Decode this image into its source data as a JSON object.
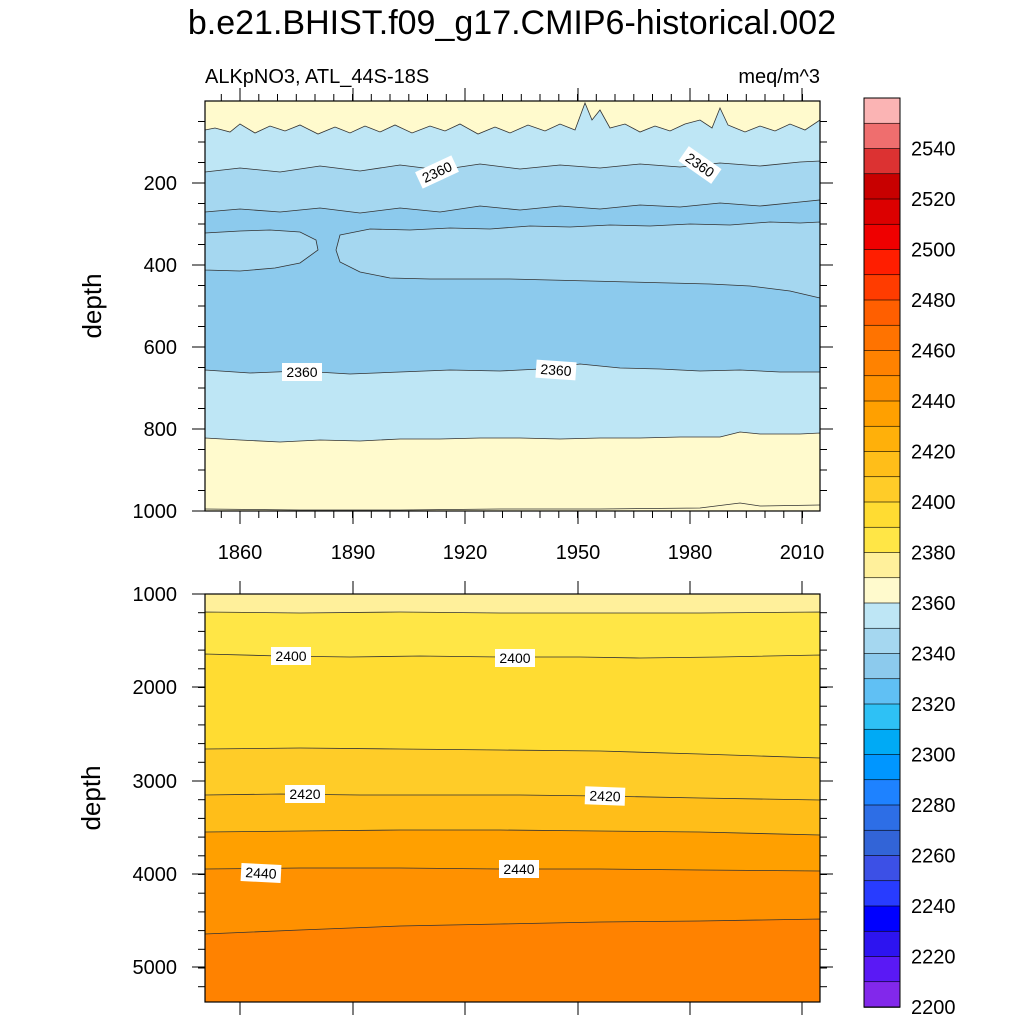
{
  "title": "b.e21.BHIST.f09_g17.CMIP6-historical.002",
  "top_panel": {
    "left_label": "ALKpNO3, ATL_44S-18S",
    "right_label": "meq/m^3",
    "ylabel": "depth",
    "yticks": [
      "200",
      "400",
      "600",
      "800",
      "1000"
    ],
    "xticks": [
      "1860",
      "1890",
      "1920",
      "1950",
      "1980",
      "2010"
    ],
    "contour_labels": [
      "2360",
      "2360",
      "2360",
      "2360"
    ]
  },
  "bottom_panel": {
    "ylabel": "depth",
    "yticks": [
      "1000",
      "2000",
      "3000",
      "4000",
      "5000"
    ],
    "contour_labels": [
      "2400",
      "2400",
      "2420",
      "2420",
      "2440",
      "2440"
    ]
  },
  "colorbar": {
    "labels": [
      "2540",
      "2520",
      "2500",
      "2480",
      "2460",
      "2440",
      "2420",
      "2400",
      "2380",
      "2360",
      "2340",
      "2320",
      "2300",
      "2280",
      "2260",
      "2240",
      "2220",
      "2200"
    ],
    "colors": [
      "#fbb4b4",
      "#ef6e6e",
      "#dc3232",
      "#c80000",
      "#dc0000",
      "#ef0000",
      "#ff1e00",
      "#ff3c00",
      "#ff5f00",
      "#ff7300",
      "#ff8200",
      "#ff9100",
      "#ffa000",
      "#ffb00a",
      "#ffbe19",
      "#ffcc28",
      "#ffdc32",
      "#ffe646",
      "#fff09b",
      "#fffacd",
      "#bee6f5",
      "#a5d7f0",
      "#8ccaed",
      "#60c0f4",
      "#2ec1f5",
      "#00aaf5",
      "#0096ff",
      "#1e82ff",
      "#2d6ee6",
      "#3264d7",
      "#3c50e6",
      "#283cff",
      "#0000ff",
      "#2d14f0",
      "#5a19f5",
      "#8228eb"
    ]
  },
  "chart_data": {
    "type": "heatmap",
    "title": "b.e21.BHIST.f09_g17.CMIP6-historical.002",
    "variable": "ALKpNO3, ATL_44S-18S",
    "units": "meq/m^3",
    "x_range": [
      1850,
      2015
    ],
    "ylabel": "depth",
    "top_panel_depth_range": [
      0,
      1000
    ],
    "bottom_panel_depth_range": [
      1000,
      5400
    ],
    "color_levels": [
      2190,
      2545
    ],
    "top_panel_bands": [
      {
        "depth_range": [
          0,
          80
        ],
        "alk_range": [
          2370,
          2380
        ]
      },
      {
        "depth_range": [
          80,
          170
        ],
        "alk_range": [
          2360,
          2370
        ]
      },
      {
        "depth_range": [
          170,
          280
        ],
        "alk_range": [
          2350,
          2360
        ]
      },
      {
        "depth_range": [
          280,
          450
        ],
        "alk_range": [
          2340,
          2350
        ]
      },
      {
        "depth_range": [
          450,
          660
        ],
        "alk_range": [
          2350,
          2360
        ]
      },
      {
        "depth_range": [
          660,
          820
        ],
        "alk_range": [
          2360,
          2370
        ]
      },
      {
        "depth_range": [
          820,
          1000
        ],
        "alk_range": [
          2370,
          2380
        ]
      }
    ],
    "bottom_panel_bands": [
      {
        "depth_range": [
          1000,
          1200
        ],
        "alk_range": [
          2380,
          2390
        ]
      },
      {
        "depth_range": [
          1200,
          1650
        ],
        "alk_range": [
          2390,
          2400
        ]
      },
      {
        "depth_range": [
          1650,
          2700
        ],
        "alk_range": [
          2400,
          2410
        ]
      },
      {
        "depth_range": [
          2700,
          3150
        ],
        "alk_range": [
          2410,
          2420
        ]
      },
      {
        "depth_range": [
          3150,
          3550
        ],
        "alk_range": [
          2420,
          2430
        ]
      },
      {
        "depth_range": [
          3550,
          3950
        ],
        "alk_range": [
          2430,
          2440
        ]
      },
      {
        "depth_range": [
          3950,
          4600
        ],
        "alk_range": [
          2440,
          2450
        ]
      },
      {
        "depth_range": [
          4600,
          5400
        ],
        "alk_range": [
          2450,
          2460
        ]
      }
    ]
  }
}
